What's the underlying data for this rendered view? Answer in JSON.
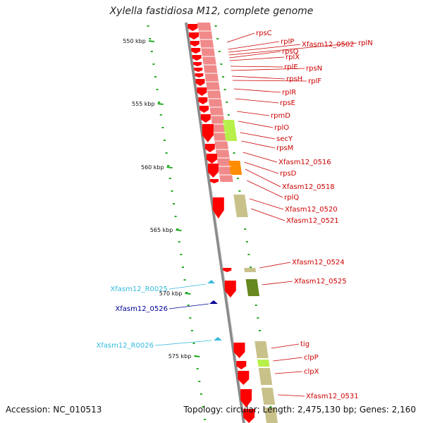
{
  "title": "Xylella fastidiosa M12, complete genome",
  "footer": {
    "accession": "Accession: NC_010513",
    "summary": "Topology: circular; Length: 2,475,130 bp; Genes: 2,160"
  },
  "ruler": [
    "550 kbp",
    "555 kbp",
    "560 kbp",
    "565 kbp",
    "570 kbp",
    "575 kbp"
  ],
  "colors": {
    "gene_label": "#cc0000",
    "trna_label": "#33bbdd",
    "minus_gene_label": "#000099",
    "gene_arrow": "#ff0000",
    "backbone": "#888888",
    "tick": "#22aa22"
  },
  "right_labels": [
    "rpsC",
    "rplP",
    "Xfasm12_0502",
    "rplN",
    "rpsQ",
    "rplX",
    "rplE",
    "rpsN",
    "rpsH",
    "rplF",
    "rplR",
    "rpsE",
    "rpmD",
    "rplO",
    "secY",
    "rpsM",
    "Xfasm12_0516",
    "rpsD",
    "Xfasm12_0518",
    "rplQ",
    "Xfasm12_0520",
    "Xfasm12_0521",
    "Xfasm12_0524",
    "Xfasm12_0525",
    "tig",
    "clpP",
    "clpX",
    "Xfasm12_0531"
  ],
  "left_labels": [
    {
      "text": "Xfasm12_R0025",
      "kind": "trna"
    },
    {
      "text": "Xfasm12_0526",
      "kind": "minus"
    },
    {
      "text": "Xfasm12_R0026",
      "kind": "trna"
    }
  ]
}
